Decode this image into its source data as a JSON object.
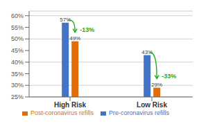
{
  "chart_data": {
    "type": "bar",
    "categories": [
      "High Risk",
      "Low Risk"
    ],
    "series": [
      {
        "name": "Pre-coronavirus refills",
        "color": "#4472C4",
        "values": [
          57,
          43
        ],
        "value_labels": [
          "57%",
          "43%"
        ]
      },
      {
        "name": "Post-coronavirus refills",
        "color": "#E36C09",
        "values": [
          49,
          29
        ],
        "value_labels": [
          "49%",
          "29%"
        ]
      }
    ],
    "ylim": [
      25,
      62
    ],
    "yticks": [
      {
        "value": 25,
        "label": "25%"
      },
      {
        "value": 30,
        "label": "30%"
      },
      {
        "value": 35,
        "label": "35%"
      },
      {
        "value": 40,
        "label": "40%"
      },
      {
        "value": 45,
        "label": "45%"
      },
      {
        "value": 50,
        "label": "50%"
      },
      {
        "value": 55,
        "label": "55%"
      },
      {
        "value": 60,
        "label": "60%"
      }
    ],
    "grid": true,
    "legend": "bottom",
    "annotations": [
      {
        "category": "High Risk",
        "text": "-13%",
        "color": "#22AA22"
      },
      {
        "category": "Low Risk",
        "text": "-33%",
        "color": "#22AA22"
      }
    ]
  }
}
